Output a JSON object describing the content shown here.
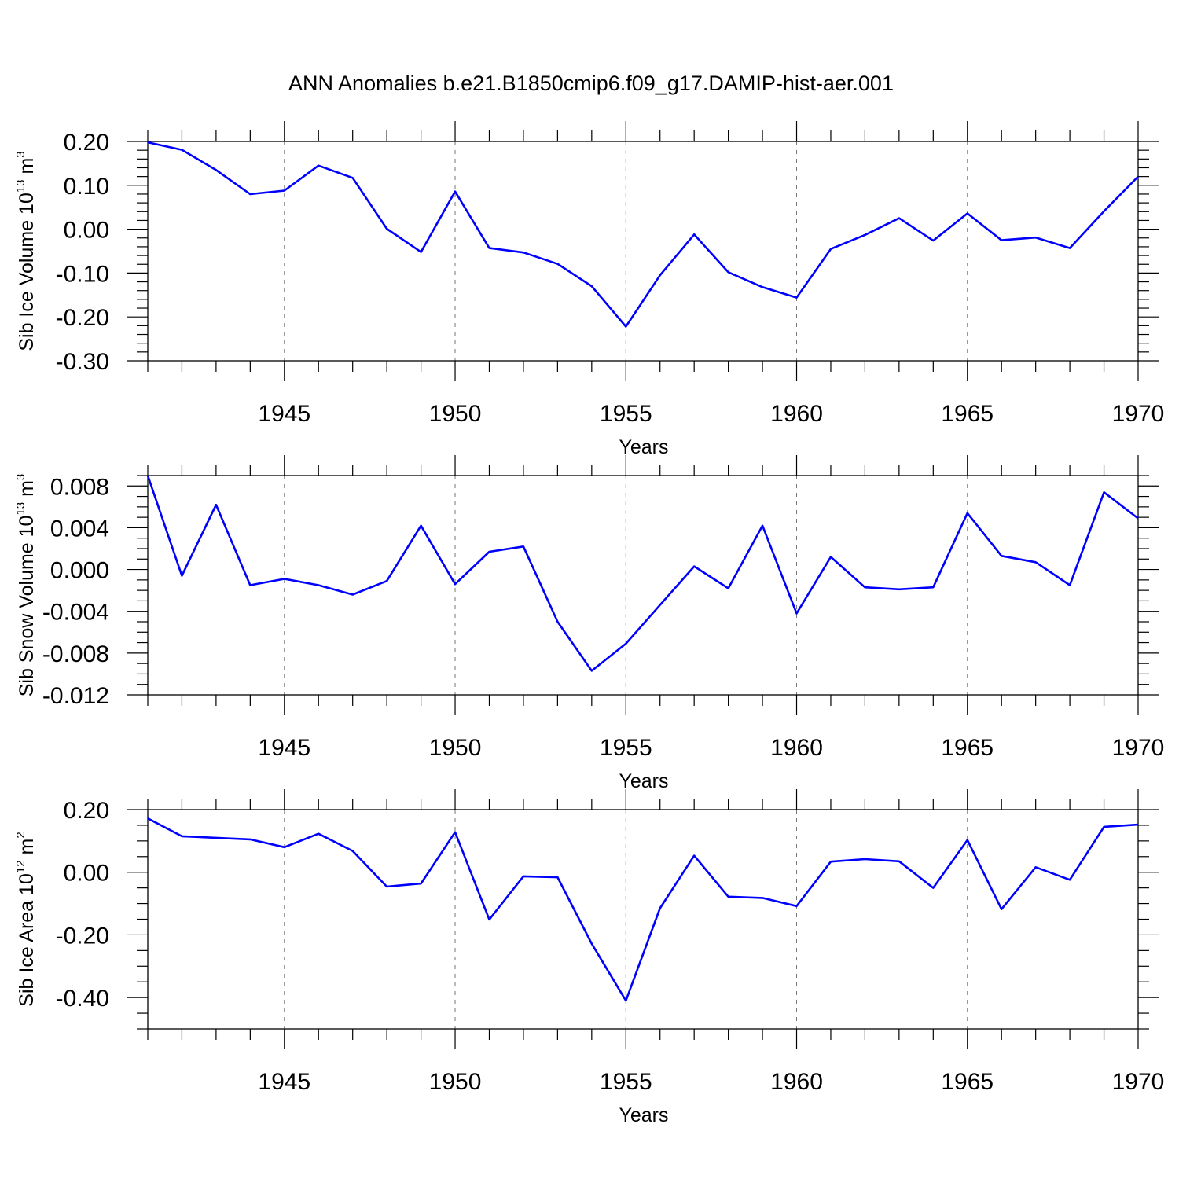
{
  "title": "ANN Anomalies b.e21.B1850cmip6.f09_g17.DAMIP-hist-aer.001",
  "colors": {
    "series": "#0000ff",
    "axis": "#000000",
    "grid": "#777777"
  },
  "chart_data": [
    {
      "type": "line",
      "ylabel": {
        "text": "Sib Ice Volume 10",
        "exp": "13",
        "unit": " m",
        "unit_exp": "3"
      },
      "xlabel": "Years",
      "xlim": [
        1941,
        1970
      ],
      "xticks": [
        1945,
        1950,
        1955,
        1960,
        1965,
        1970
      ],
      "ylim": [
        -0.3,
        0.2
      ],
      "yticks": [
        -0.3,
        -0.2,
        -0.1,
        0.0,
        0.1,
        0.2
      ],
      "ytick_labels": [
        "-0.30",
        "-0.20",
        "-0.10",
        "0.00",
        "0.10",
        "0.20"
      ],
      "yminor_step": 0.02,
      "grid": "vertical dashed at major x ticks",
      "x": [
        1941,
        1942,
        1943,
        1944,
        1945,
        1946,
        1947,
        1948,
        1949,
        1950,
        1951,
        1952,
        1953,
        1954,
        1955,
        1956,
        1957,
        1958,
        1959,
        1960,
        1961,
        1962,
        1963,
        1964,
        1965,
        1966,
        1967,
        1968,
        1969,
        1970
      ],
      "values": [
        0.198,
        0.181,
        0.135,
        0.08,
        0.088,
        0.145,
        0.117,
        0.001,
        -0.052,
        0.086,
        -0.043,
        -0.053,
        -0.079,
        -0.13,
        -0.222,
        -0.105,
        -0.012,
        -0.098,
        -0.132,
        -0.156,
        -0.045,
        -0.013,
        0.025,
        -0.026,
        0.036,
        -0.025,
        -0.019,
        -0.043,
        0.041,
        0.12
      ]
    },
    {
      "type": "line",
      "ylabel": {
        "text": "Sib Snow Volume 10",
        "exp": "13",
        "unit": " m",
        "unit_exp": "3"
      },
      "xlabel": "Years",
      "xlim": [
        1941,
        1970
      ],
      "xticks": [
        1945,
        1950,
        1955,
        1960,
        1965,
        1970
      ],
      "ylim": [
        -0.012,
        0.009
      ],
      "yticks": [
        -0.012,
        -0.008,
        -0.004,
        0.0,
        0.004,
        0.008
      ],
      "ytick_labels": [
        "-0.012",
        "-0.008",
        "-0.004",
        "0.000",
        "0.004",
        "0.008"
      ],
      "yminor_step": 0.001,
      "grid": "vertical dashed at major x ticks",
      "x": [
        1941,
        1942,
        1943,
        1944,
        1945,
        1946,
        1947,
        1948,
        1949,
        1950,
        1951,
        1952,
        1953,
        1954,
        1955,
        1956,
        1957,
        1958,
        1959,
        1960,
        1961,
        1962,
        1963,
        1964,
        1965,
        1966,
        1967,
        1968,
        1969,
        1970
      ],
      "values": [
        0.009,
        -0.0006,
        0.0062,
        -0.0015,
        -0.0009,
        -0.0015,
        -0.0024,
        -0.0011,
        0.0042,
        -0.0014,
        0.0017,
        0.0022,
        -0.005,
        -0.0097,
        -0.0071,
        -0.0034,
        0.0003,
        -0.0018,
        0.0042,
        -0.0042,
        0.0012,
        -0.0017,
        -0.0019,
        -0.0017,
        0.0054,
        0.0013,
        0.0007,
        -0.0015,
        0.0074,
        0.0049
      ]
    },
    {
      "type": "line",
      "ylabel": {
        "text": "Sib Ice Area 10",
        "exp": "12",
        "unit": " m",
        "unit_exp": "2"
      },
      "xlabel": "Years",
      "xlim": [
        1941,
        1970
      ],
      "xticks": [
        1945,
        1950,
        1955,
        1960,
        1965,
        1970
      ],
      "ylim": [
        -0.5,
        0.2
      ],
      "yticks": [
        -0.4,
        -0.2,
        0.0,
        0.2
      ],
      "ytick_labels": [
        "-0.40",
        "-0.20",
        "0.00",
        "0.20"
      ],
      "yminor_step": 0.05,
      "grid": "vertical dashed at major x ticks",
      "x": [
        1941,
        1942,
        1943,
        1944,
        1945,
        1946,
        1947,
        1948,
        1949,
        1950,
        1951,
        1952,
        1953,
        1954,
        1955,
        1956,
        1957,
        1958,
        1959,
        1960,
        1961,
        1962,
        1963,
        1964,
        1965,
        1966,
        1967,
        1968,
        1969,
        1970
      ],
      "values": [
        0.172,
        0.115,
        0.11,
        0.105,
        0.08,
        0.123,
        0.068,
        -0.046,
        -0.036,
        0.128,
        -0.151,
        -0.013,
        -0.016,
        -0.228,
        -0.41,
        -0.115,
        0.053,
        -0.078,
        -0.082,
        -0.108,
        0.034,
        0.042,
        0.035,
        -0.05,
        0.103,
        -0.118,
        0.016,
        -0.024,
        0.145,
        0.152
      ]
    }
  ]
}
